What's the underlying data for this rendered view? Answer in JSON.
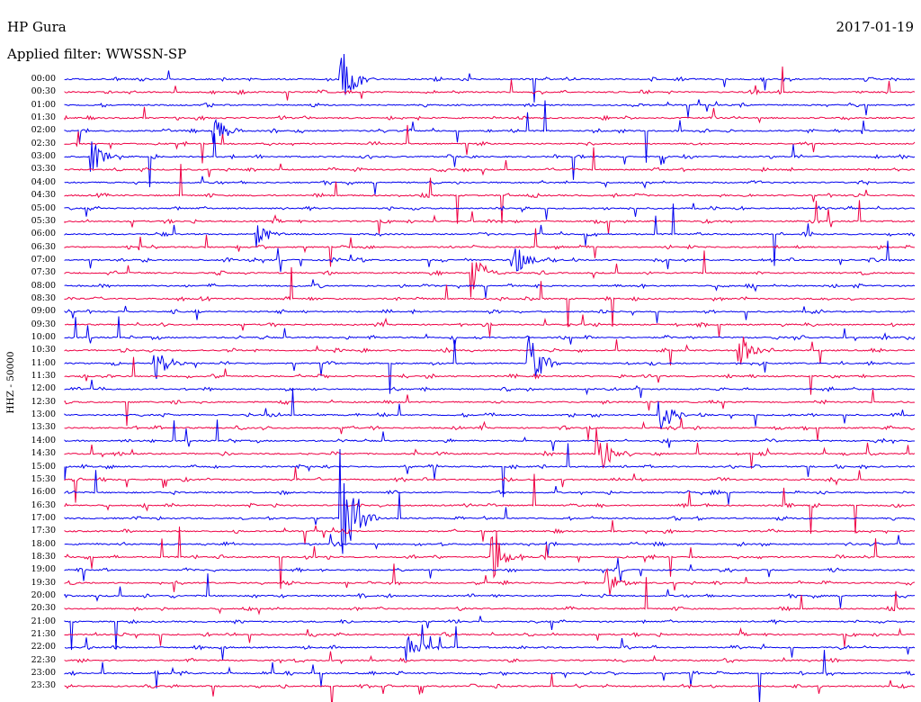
{
  "header": {
    "station": "HP Gura",
    "date": "2017-01-19",
    "filter_prefix": "Applied filter:",
    "filter_name": "WWSSN-SP"
  },
  "chart_data": {
    "type": "line",
    "title": "HP Gura",
    "date": "2017-01-19",
    "channel_label": "HHZ - 50000",
    "filter": "WWSSN-SP",
    "row_times": [
      "00:00",
      "00:30",
      "01:00",
      "01:30",
      "02:00",
      "02:30",
      "03:00",
      "03:30",
      "04:00",
      "04:30",
      "05:00",
      "05:30",
      "06:00",
      "06:30",
      "07:00",
      "07:30",
      "08:00",
      "08:30",
      "09:00",
      "09:30",
      "10:00",
      "10:30",
      "11:00",
      "11:30",
      "12:00",
      "12:30",
      "13:00",
      "13:30",
      "14:00",
      "14:30",
      "15:00",
      "15:30",
      "16:00",
      "16:30",
      "17:00",
      "17:30",
      "18:00",
      "18:30",
      "19:00",
      "19:30",
      "20:00",
      "20:30",
      "21:00",
      "21:30",
      "22:00",
      "22:30",
      "23:00",
      "23:30"
    ],
    "row_colors": [
      "#0000ee",
      "#ee0044"
    ],
    "row_minutes": 30,
    "grid": false,
    "notable_events": [
      {
        "row": "00:00",
        "minute": 9.7,
        "amplitude": 3.5
      },
      {
        "row": "02:00",
        "minute": 5.2,
        "amplitude": 2.0
      },
      {
        "row": "03:00",
        "minute": 0.9,
        "amplitude": 1.5
      },
      {
        "row": "06:00",
        "minute": 6.7,
        "amplitude": 1.2
      },
      {
        "row": "07:00",
        "minute": 15.7,
        "amplitude": 2.0
      },
      {
        "row": "07:30",
        "minute": 14.3,
        "amplitude": 2.2
      },
      {
        "row": "10:30",
        "minute": 23.7,
        "amplitude": 2.0
      },
      {
        "row": "11:00",
        "minute": 3.1,
        "amplitude": 2.0
      },
      {
        "row": "11:00",
        "minute": 16.3,
        "amplitude": 3.0
      },
      {
        "row": "13:00",
        "minute": 20.9,
        "amplitude": 2.0
      },
      {
        "row": "14:30",
        "minute": 18.7,
        "amplitude": 3.0
      },
      {
        "row": "17:00",
        "minute": 9.7,
        "amplitude": 7.0
      },
      {
        "row": "18:30",
        "minute": 15.0,
        "amplitude": 2.5
      },
      {
        "row": "19:30",
        "minute": 19.0,
        "amplitude": 1.5
      },
      {
        "row": "22:00",
        "minute": 12.0,
        "amplitude": 1.5
      }
    ]
  }
}
